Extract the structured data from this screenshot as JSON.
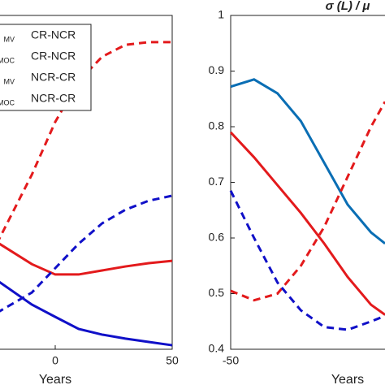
{
  "chart_data": [
    {
      "type": "line",
      "xlabel": "Years",
      "xlim": [
        -50,
        50
      ],
      "xticks": [
        0,
        50
      ],
      "ylim": [
        0,
        1
      ],
      "x": [
        -25,
        -10,
        0,
        10,
        20,
        30,
        40,
        50
      ],
      "series": [
        {
          "name": "CR-NCR",
          "subscript": "MV",
          "color": "#e31a1c",
          "dash": false,
          "values": [
            0.321,
            0.255,
            0.224,
            0.224,
            0.236,
            0.248,
            0.258,
            0.265
          ]
        },
        {
          "name": "CR-NCR",
          "subscript": "MOC",
          "color": "#e31a1c",
          "dash": true,
          "values": [
            0.316,
            0.523,
            0.681,
            0.803,
            0.876,
            0.912,
            0.92,
            0.92
          ]
        },
        {
          "name": "NCR-CR",
          "subscript": "MV",
          "color": "#1010c8",
          "dash": false,
          "values": [
            0.207,
            0.134,
            0.097,
            0.061,
            0.044,
            0.032,
            0.022,
            0.012
          ]
        },
        {
          "name": "NCR-CR",
          "subscript": "MOC",
          "color": "#1010c8",
          "dash": true,
          "values": [
            0.109,
            0.17,
            0.243,
            0.316,
            0.377,
            0.418,
            0.445,
            0.46
          ]
        }
      ]
    },
    {
      "type": "line",
      "title": "σ (L) /  μ",
      "xlabel": "Years",
      "xlim": [
        -50,
        50
      ],
      "xticks": [
        -50
      ],
      "ylim": [
        0.4,
        1
      ],
      "yticks": [
        0.4,
        0.5,
        0.6,
        0.7,
        0.8,
        0.9,
        1
      ],
      "x": [
        -50,
        -40,
        -30,
        -20,
        -10,
        0,
        10,
        16
      ],
      "series": [
        {
          "color": "#0a6eb4",
          "dash": false,
          "values": [
            0.872,
            0.885,
            0.86,
            0.81,
            0.735,
            0.66,
            0.61,
            0.59
          ]
        },
        {
          "color": "#e31a1c",
          "dash": false,
          "values": [
            0.79,
            0.745,
            0.695,
            0.645,
            0.59,
            0.53,
            0.48,
            0.462
          ]
        },
        {
          "color": "#e31a1c",
          "dash": true,
          "values": [
            0.505,
            0.488,
            0.5,
            0.55,
            0.62,
            0.71,
            0.8,
            0.845
          ]
        },
        {
          "color": "#1010c8",
          "dash": true,
          "values": [
            0.685,
            0.6,
            0.52,
            0.47,
            0.44,
            0.435,
            0.45,
            0.46
          ]
        }
      ]
    }
  ]
}
